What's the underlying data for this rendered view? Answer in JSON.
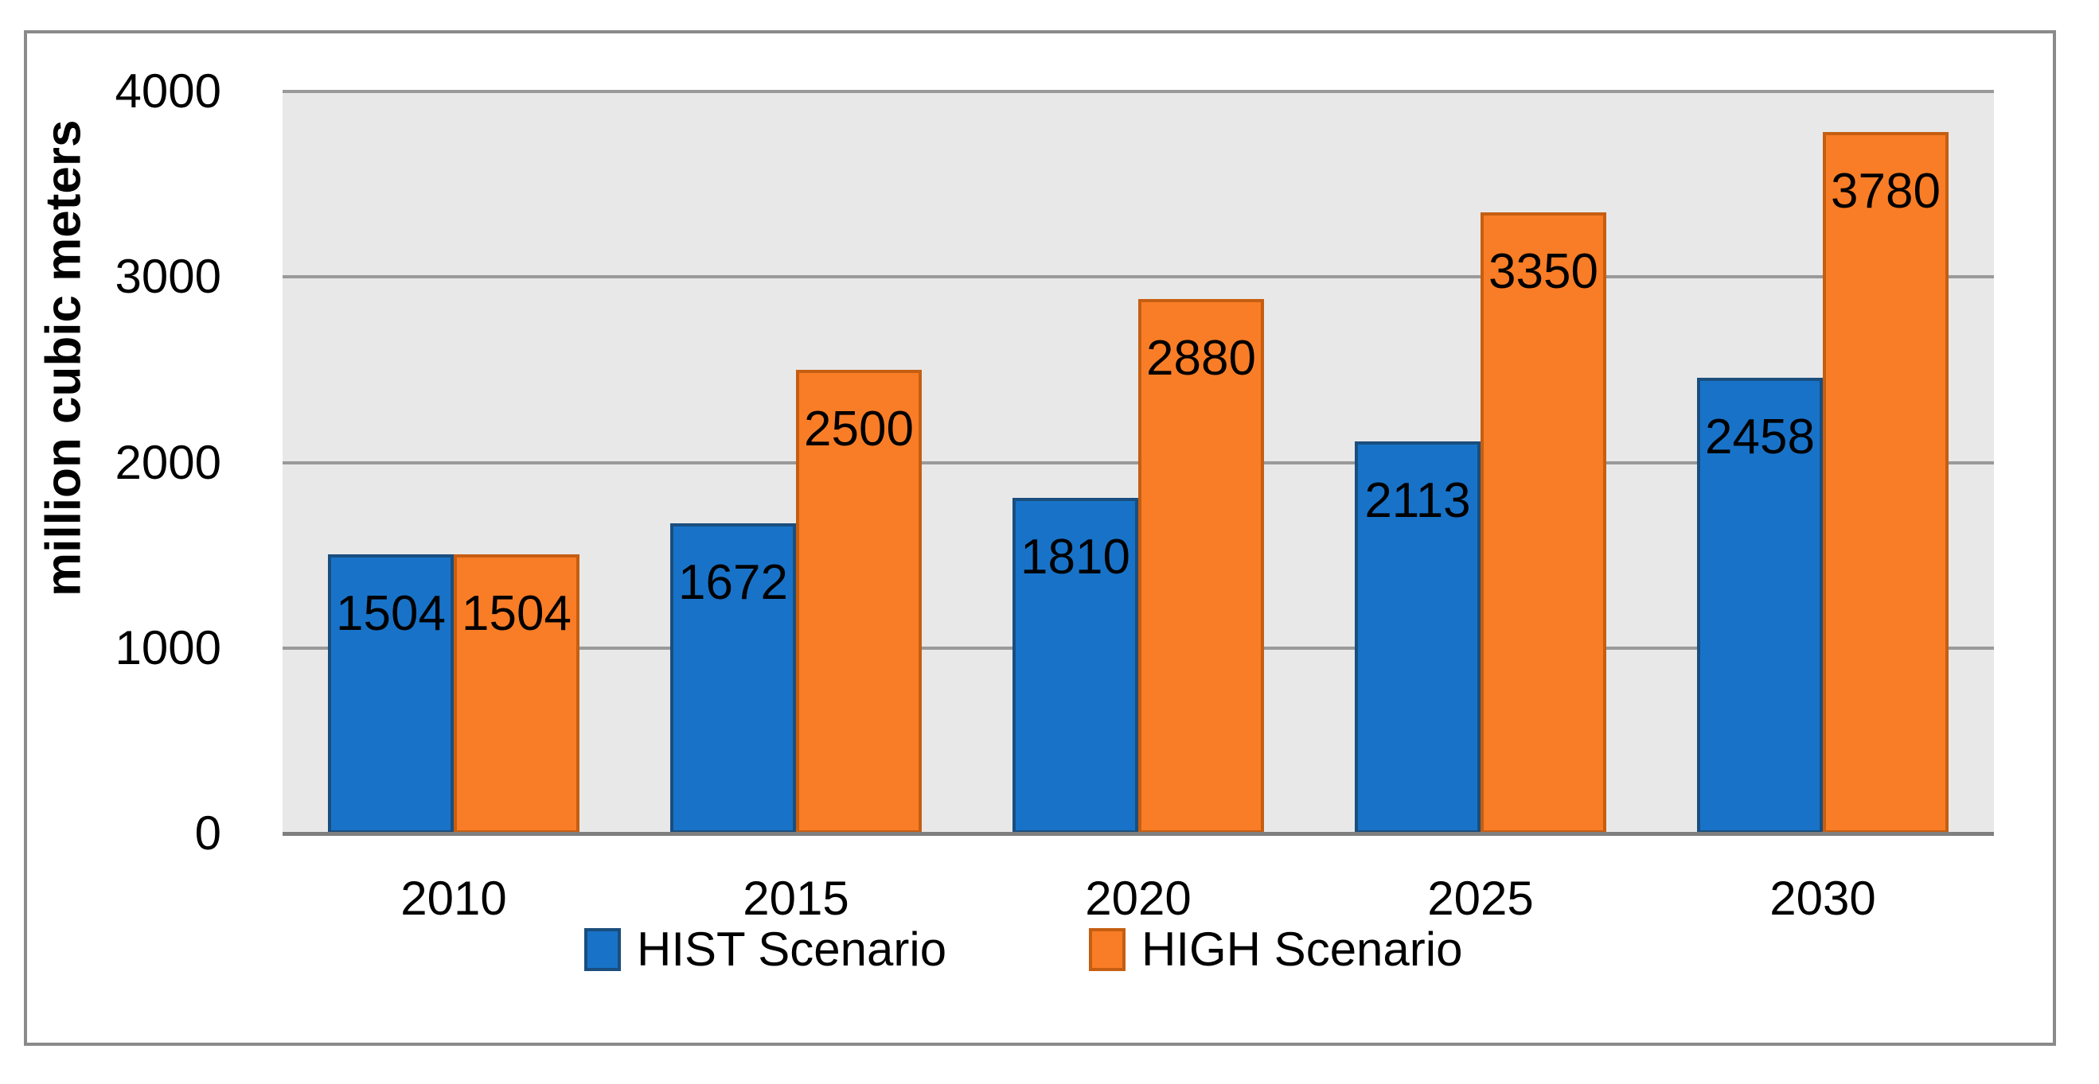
{
  "chart_data": {
    "type": "bar",
    "title": "",
    "categories": [
      "2010",
      "2015",
      "2020",
      "2025",
      "2030"
    ],
    "series": [
      {
        "name": "HIST Scenario",
        "values": [
          1504,
          1672,
          1810,
          2113,
          2458
        ],
        "fill": "#1873C8",
        "border": "#1A4E7E"
      },
      {
        "name": "HIGH Scenario",
        "values": [
          1504,
          2500,
          2880,
          3350,
          3780
        ],
        "fill": "#F97D26",
        "border": "#C55E11"
      }
    ],
    "data_label_values": [
      [
        "1504",
        "1672",
        "1810",
        "2113",
        "2458"
      ],
      [
        "1504",
        "2500",
        "2880",
        "3350",
        "3780"
      ]
    ],
    "xlabel": "",
    "ylabel": "million cubic meters",
    "ylim": [
      0,
      4000
    ],
    "yticks": [
      "4000",
      "3000",
      "2000",
      "1000",
      "0"
    ],
    "grid": "horizontal",
    "legend_position": "bottom",
    "data_labels": "inside-end",
    "colors": {
      "plot_bg": "#E8E8E8",
      "gridline": "#9A9A9A",
      "axis_line": "#7F7F7F",
      "frame_border": "#8A8A8A",
      "page_bg": "#FFFFFF",
      "text": "#000000"
    }
  }
}
